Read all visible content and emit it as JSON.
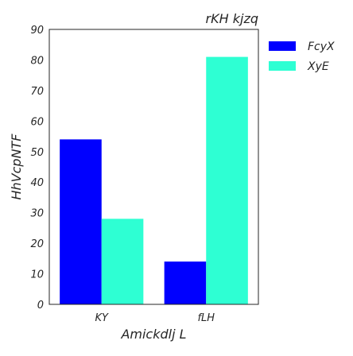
{
  "chart_data": {
    "type": "bar",
    "title": "rKH kjzq",
    "xlabel": "Amickdlj L",
    "ylabel": "HhVcpNTF",
    "categories": [
      "KY",
      "fLH"
    ],
    "series": [
      {
        "name": "FcyX",
        "values": [
          54,
          14
        ]
      },
      {
        "name": "XyE",
        "values": [
          28,
          81
        ]
      }
    ],
    "ylim": [
      0,
      90
    ],
    "yticks": [
      0,
      10,
      20,
      30,
      40,
      50,
      60,
      70,
      80,
      90
    ],
    "grid": false,
    "legend_position": "right-top",
    "colors": {
      "FcyX": "#0000ff",
      "XyE": "#2effd3"
    }
  }
}
